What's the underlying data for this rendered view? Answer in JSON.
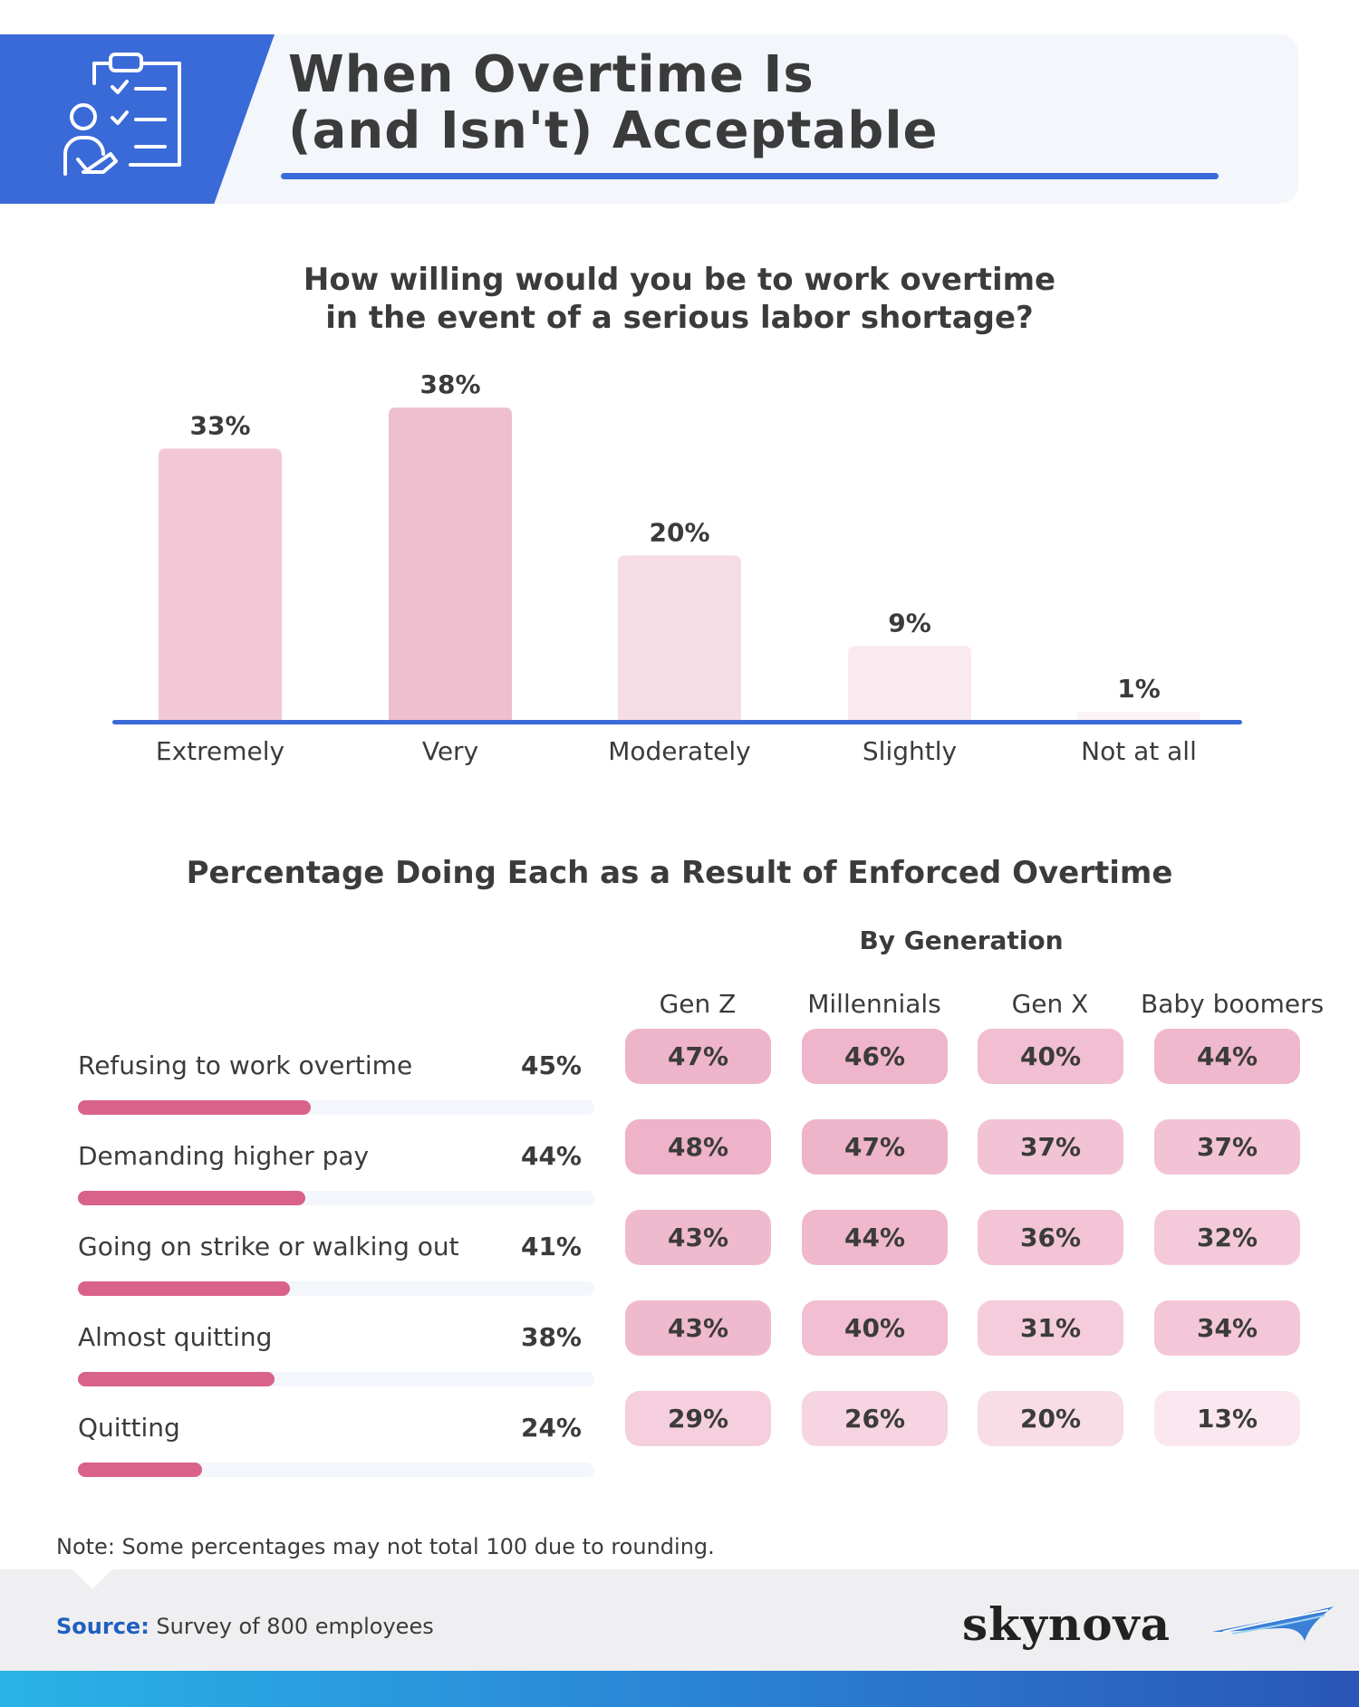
{
  "header": {
    "title_line1": "When Overtime Is",
    "title_line2": "(and Isn't) Acceptable",
    "icon": "clipboard-checklist-person-icon"
  },
  "chart1": {
    "title_line1": "How willing would you be to work overtime",
    "title_line2": "in the event of a serious labor shortage?"
  },
  "chart_data": [
    {
      "type": "bar",
      "title": "How willing would you be to work overtime in the event of a serious labor shortage?",
      "categories": [
        "Extremely",
        "Very",
        "Moderately",
        "Slightly",
        "Not at all"
      ],
      "values": [
        33,
        38,
        20,
        9,
        1
      ],
      "value_labels": [
        "33%",
        "38%",
        "20%",
        "9%",
        "1%"
      ],
      "colors": [
        "#f2c8d6",
        "#eebfcf",
        "#f6dce5",
        "#f9eaf0",
        "#fcf3f6"
      ],
      "axis_color": "#3a6ad8",
      "ylim": [
        0,
        38
      ],
      "grid": false
    },
    {
      "type": "table",
      "title": "Percentage Doing Each as a Result of Enforced Overtime",
      "group_label": "By Generation",
      "columns": [
        "Gen Z",
        "Millennials",
        "Gen X",
        "Baby boomers"
      ],
      "rows": [
        {
          "label": "Refusing to work overtime",
          "overall": 45,
          "overall_label": "45%",
          "values": [
            47,
            46,
            40,
            44
          ],
          "value_labels": [
            "47%",
            "46%",
            "40%",
            "44%"
          ]
        },
        {
          "label": "Demanding higher pay",
          "overall": 44,
          "overall_label": "44%",
          "values": [
            48,
            47,
            37,
            37
          ],
          "value_labels": [
            "48%",
            "47%",
            "37%",
            "37%"
          ]
        },
        {
          "label": "Going on strike or walking out",
          "overall": 41,
          "overall_label": "41%",
          "values": [
            43,
            44,
            36,
            32
          ],
          "value_labels": [
            "43%",
            "44%",
            "36%",
            "32%"
          ]
        },
        {
          "label": "Almost quitting",
          "overall": 38,
          "overall_label": "38%",
          "values": [
            43,
            40,
            31,
            34
          ],
          "value_labels": [
            "43%",
            "40%",
            "31%",
            "34%"
          ]
        },
        {
          "label": "Quitting",
          "overall": 24,
          "overall_label": "24%",
          "values": [
            29,
            26,
            20,
            13
          ],
          "value_labels": [
            "29%",
            "26%",
            "20%",
            "13%"
          ]
        }
      ],
      "overall_bar_color": "#d9628a",
      "overall_bar_max": 100
    }
  ],
  "section2": {
    "title": "Percentage Doing Each as a Result of Enforced Overtime",
    "group_label": "By Generation"
  },
  "note": "Note: Some percentages may not total 100 due to rounding.",
  "footer": {
    "source_label": "Source:",
    "source_text": " Survey of 800 employees",
    "logo_text": "skynova",
    "logo_icon": "swoosh-logo-icon"
  }
}
